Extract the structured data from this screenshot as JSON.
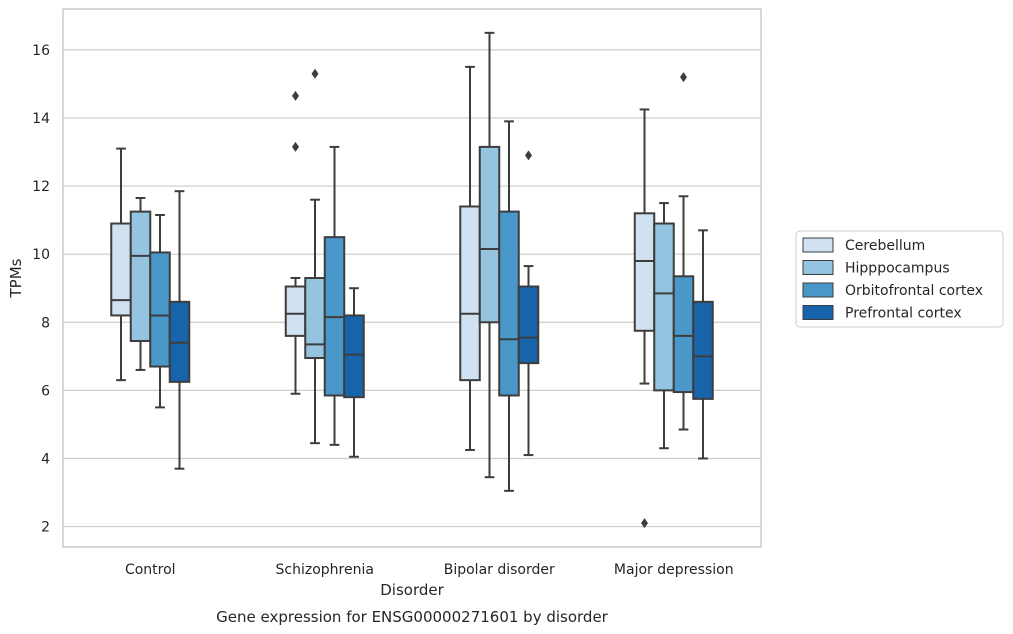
{
  "chart_data": {
    "type": "box",
    "title": "Gene expression for ENSG00000271601 by disorder",
    "xlabel": "Disorder",
    "ylabel": "TPMs",
    "ylim": [
      1.4,
      17.2
    ],
    "yticks": [
      2,
      4,
      6,
      8,
      10,
      12,
      14,
      16
    ],
    "grid": "horizontal",
    "legend_position": "right",
    "categories": [
      "Control",
      "Schizophrenia",
      "Bipolar disorder",
      "Major depression"
    ],
    "series": [
      {
        "name": "Cerebellum",
        "color": "#d0e1f2",
        "boxes": [
          {
            "whisker_low": 6.3,
            "q1": 8.2,
            "median": 8.65,
            "q3": 10.9,
            "whisker_high": 13.1,
            "outliers": []
          },
          {
            "whisker_low": 5.9,
            "q1": 7.6,
            "median": 8.25,
            "q3": 9.05,
            "whisker_high": 9.3,
            "outliers": [
              14.65,
              13.15
            ]
          },
          {
            "whisker_low": 4.25,
            "q1": 6.3,
            "median": 8.25,
            "q3": 11.4,
            "whisker_high": 15.5,
            "outliers": []
          },
          {
            "whisker_low": 6.2,
            "q1": 7.75,
            "median": 9.8,
            "q3": 11.2,
            "whisker_high": 14.25,
            "outliers": [
              2.1
            ]
          }
        ]
      },
      {
        "name": "Hipppocampus",
        "color": "#94c4df",
        "boxes": [
          {
            "whisker_low": 6.6,
            "q1": 7.45,
            "median": 9.95,
            "q3": 11.25,
            "whisker_high": 11.65,
            "outliers": []
          },
          {
            "whisker_low": 4.45,
            "q1": 6.95,
            "median": 7.35,
            "q3": 9.3,
            "whisker_high": 11.6,
            "outliers": [
              15.3
            ]
          },
          {
            "whisker_low": 3.45,
            "q1": 8.0,
            "median": 10.15,
            "q3": 13.15,
            "whisker_high": 16.5,
            "outliers": []
          },
          {
            "whisker_low": 4.3,
            "q1": 6.0,
            "median": 8.85,
            "q3": 10.9,
            "whisker_high": 11.5,
            "outliers": []
          }
        ]
      },
      {
        "name": "Orbitofrontal cortex",
        "color": "#4a98c9",
        "boxes": [
          {
            "whisker_low": 5.5,
            "q1": 6.7,
            "median": 8.2,
            "q3": 10.05,
            "whisker_high": 11.15,
            "outliers": []
          },
          {
            "whisker_low": 4.4,
            "q1": 5.85,
            "median": 8.15,
            "q3": 10.5,
            "whisker_high": 13.15,
            "outliers": []
          },
          {
            "whisker_low": 3.05,
            "q1": 5.85,
            "median": 7.5,
            "q3": 11.25,
            "whisker_high": 13.9,
            "outliers": []
          },
          {
            "whisker_low": 4.85,
            "q1": 5.95,
            "median": 7.6,
            "q3": 9.35,
            "whisker_high": 11.7,
            "outliers": [
              15.2
            ]
          }
        ]
      },
      {
        "name": "Prefrontal cortex",
        "color": "#1764ab",
        "boxes": [
          {
            "whisker_low": 3.7,
            "q1": 6.25,
            "median": 7.4,
            "q3": 8.6,
            "whisker_high": 11.85,
            "outliers": []
          },
          {
            "whisker_low": 4.05,
            "q1": 5.8,
            "median": 7.05,
            "q3": 8.2,
            "whisker_high": 9.0,
            "outliers": []
          },
          {
            "whisker_low": 4.1,
            "q1": 6.8,
            "median": 7.55,
            "q3": 9.05,
            "whisker_high": 9.65,
            "outliers": [
              12.9
            ]
          },
          {
            "whisker_low": 4.0,
            "q1": 5.75,
            "median": 7.0,
            "q3": 8.6,
            "whisker_high": 10.7,
            "outliers": []
          }
        ]
      }
    ],
    "colors": {
      "grid": "#cccccc",
      "frame": "#cccccc",
      "box_edge": "#3d3d3d",
      "text": "#262626"
    }
  }
}
